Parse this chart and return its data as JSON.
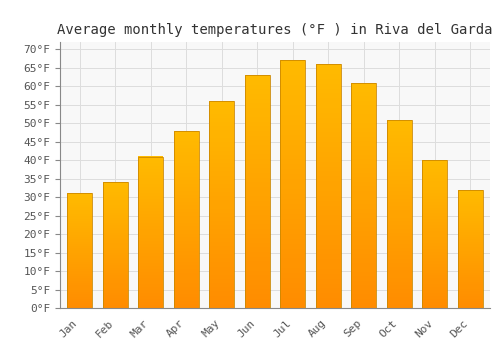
{
  "title": "Average monthly temperatures (°F ) in Riva del Garda",
  "months": [
    "Jan",
    "Feb",
    "Mar",
    "Apr",
    "May",
    "Jun",
    "Jul",
    "Aug",
    "Sep",
    "Oct",
    "Nov",
    "Dec"
  ],
  "values": [
    31,
    34,
    41,
    48,
    56,
    63,
    67,
    66,
    61,
    51,
    40,
    32
  ],
  "bar_color_top": "#FFBB00",
  "bar_color_bottom": "#FF8C00",
  "bar_edge_color": "#CC8800",
  "background_color": "#FFFFFF",
  "plot_bg_color": "#F8F8F8",
  "grid_color": "#DDDDDD",
  "ylim": [
    0,
    72
  ],
  "yticks": [
    0,
    5,
    10,
    15,
    20,
    25,
    30,
    35,
    40,
    45,
    50,
    55,
    60,
    65,
    70
  ],
  "title_fontsize": 10,
  "tick_fontsize": 8,
  "title_font": "monospace",
  "tick_font": "monospace",
  "bar_width": 0.7
}
